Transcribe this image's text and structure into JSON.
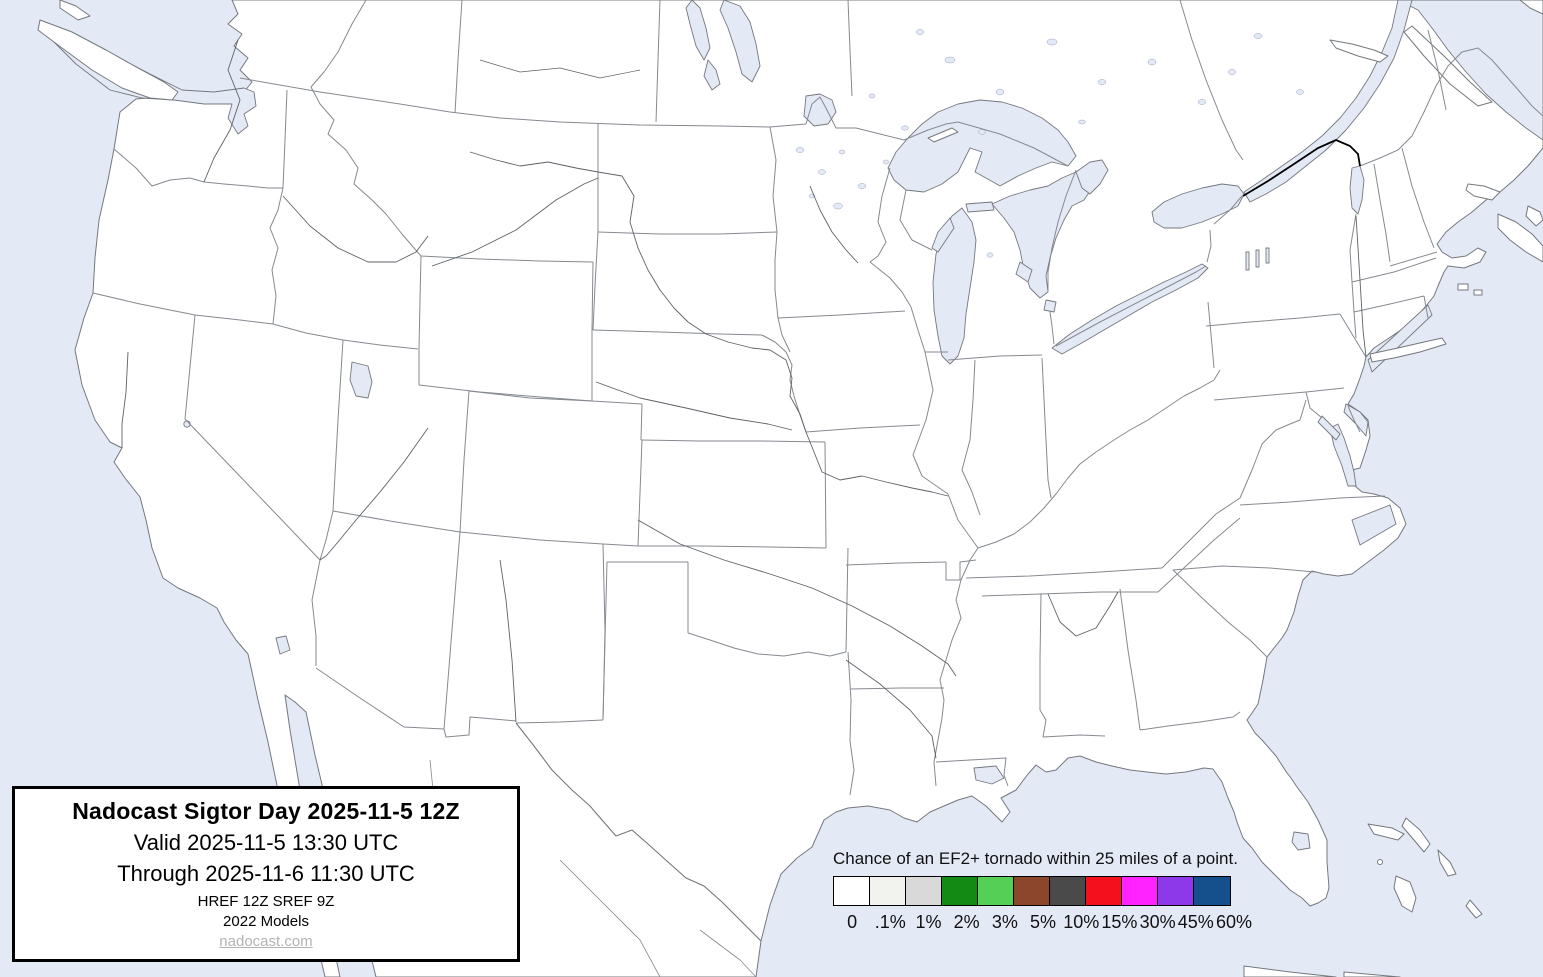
{
  "map": {
    "region": "CONUS weather outlook basemap with southern Canada and northern Mexico",
    "water_color": "#e4e9f6",
    "land_color": "#ffffff",
    "state_border_color": "#858a90",
    "coast_color": "#74787d",
    "river_color": "#5d6167",
    "intl_border_color": "#000000"
  },
  "title_box": {
    "line1": "Nadocast Sigtor Day 2025-11-5 12Z",
    "line2": "Valid 2025-11-5 13:30 UTC",
    "line3": "Through 2025-11-6 11:30 UTC",
    "line4": "HREF 12Z SREF 9Z",
    "line5": "2022 Models",
    "link": "nadocast.com"
  },
  "legend": {
    "title": "Chance of an EF2+ tornado within 25 miles of a point.",
    "stops": [
      {
        "label": "0",
        "color": "#ffffff"
      },
      {
        "label": ".1%",
        "color": "#f2f2ef"
      },
      {
        "label": "1%",
        "color": "#d9d9d9"
      },
      {
        "label": "2%",
        "color": "#138a13"
      },
      {
        "label": "3%",
        "color": "#55cf55"
      },
      {
        "label": "5%",
        "color": "#8b462b"
      },
      {
        "label": "10%",
        "color": "#4a4a4a"
      },
      {
        "label": "15%",
        "color": "#f5101e"
      },
      {
        "label": "30%",
        "color": "#ff24ff"
      },
      {
        "label": "45%",
        "color": "#8d39e9"
      },
      {
        "label": "60%",
        "color": "#15508c"
      }
    ]
  }
}
